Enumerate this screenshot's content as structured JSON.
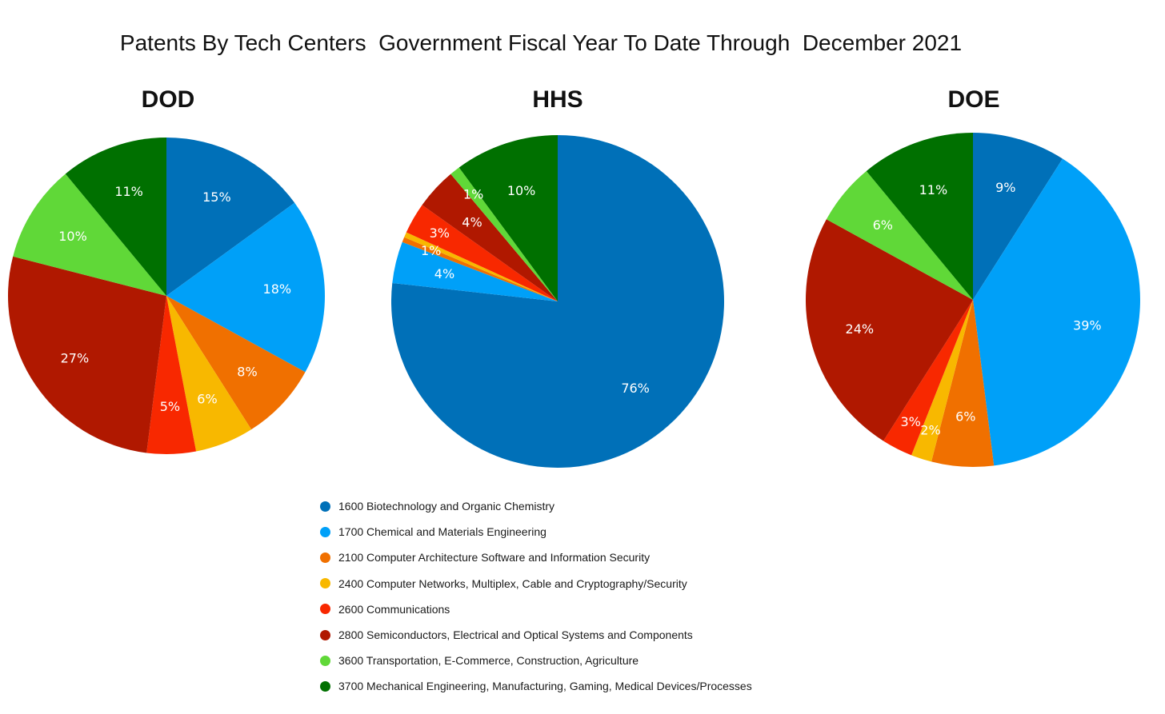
{
  "title": "Patents By Tech Centers  Government Fiscal Year To Date Through  December 2021",
  "legend": [
    {
      "label": "1600 Biotechnology and Organic Chemistry",
      "color": "#0070b8"
    },
    {
      "label": "1700 Chemical and Materials Engineering",
      "color": "#00a0f8"
    },
    {
      "label": "2100 Computer Architecture Software and Information Security",
      "color": "#f07000"
    },
    {
      "label": "2400 Computer Networks, Multiplex, Cable and Cryptography/Security",
      "color": "#f8b800"
    },
    {
      "label": "2600 Communications",
      "color": "#f82800"
    },
    {
      "label": "2800 Semiconductors, Electrical and Optical Systems and Components",
      "color": "#b01800"
    },
    {
      "label": "3600 Transportation, E-Commerce, Construction, Agriculture",
      "color": "#60d838"
    },
    {
      "label": "3700 Mechanical Engineering, Manufacturing, Gaming, Medical Devices/Processes",
      "color": "#007000"
    }
  ],
  "chart_data": [
    {
      "type": "pie",
      "title": "DOD",
      "categories": [
        "1600",
        "1700",
        "2100",
        "2400",
        "2600",
        "2800",
        "3600",
        "3700"
      ],
      "values": [
        15,
        18,
        8,
        6,
        5,
        27,
        10,
        11
      ],
      "labels": [
        "15%",
        "18%",
        "8%",
        "6%",
        "5%",
        "27%",
        "10%",
        "11%"
      ]
    },
    {
      "type": "pie",
      "title": "HHS",
      "categories": [
        "1600",
        "1700",
        "2100",
        "2400",
        "2600",
        "2800",
        "3600",
        "3700"
      ],
      "values": [
        76,
        4,
        0.5,
        0.5,
        3,
        4,
        1,
        10
      ],
      "labels": [
        "76%",
        "4%",
        "1%",
        "",
        "3%",
        "4%",
        "1%",
        "10%"
      ]
    },
    {
      "type": "pie",
      "title": "DOE",
      "categories": [
        "1600",
        "1700",
        "2100",
        "2400",
        "2600",
        "2800",
        "3600",
        "3700"
      ],
      "values": [
        9,
        39,
        6,
        2,
        3,
        24,
        6,
        11
      ],
      "labels": [
        "9%",
        "39%",
        "6%",
        "2%",
        "3%",
        "24%",
        "6%",
        "11%"
      ]
    }
  ]
}
